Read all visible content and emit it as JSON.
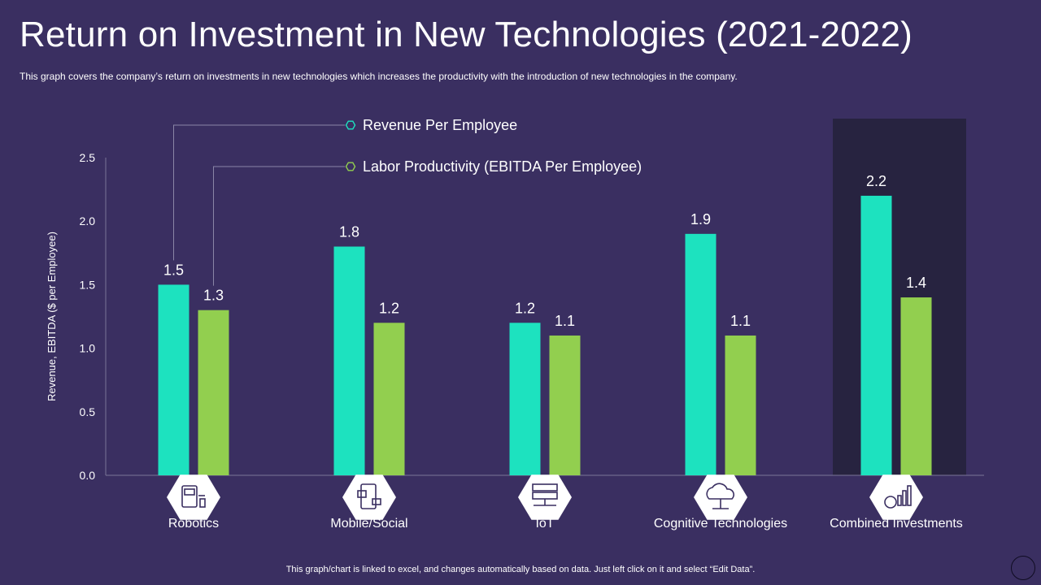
{
  "title": "Return on Investment in New Technologies (2021-2022)",
  "subtitle": "This graph covers the company’s return  on investments in new technologies which increases the productivity with the introduction of new technologies in the company.",
  "footnote": "This graph/chart is linked to excel,  and changes automatically based on data. Just left click on it and select “Edit Data”.",
  "colors": {
    "background": "#3a2f61",
    "revenue": "#1de2bf",
    "labor": "#92cf4f",
    "highlight_panel": "#272340",
    "axis": "#7b7598"
  },
  "chart_data": {
    "type": "bar",
    "title": "",
    "xlabel": "",
    "ylabel": "Revenue, EBITDA ($ per Employee)",
    "ylim": [
      0,
      2.5
    ],
    "yticks": [
      "0.0",
      "0.5",
      "1.0",
      "1.5",
      "2.0",
      "2.5"
    ],
    "categories": [
      "Robotics",
      "Mobile/Social",
      "IoT",
      "Cognitive Technologies",
      "Combined Investments"
    ],
    "category_icons": [
      "robot-machine-icon",
      "mobile-social-icon",
      "server-network-icon",
      "cloud-brain-icon",
      "growth-chart-coin-icon"
    ],
    "highlighted_category": "Combined Investments",
    "series": [
      {
        "name": "Revenue Per Employee",
        "values": [
          1.5,
          1.8,
          1.2,
          1.9,
          2.2
        ],
        "labels": [
          "1.5",
          "1.8",
          "1.2",
          "1.9",
          "2.2"
        ]
      },
      {
        "name": "Labor Productivity (EBITDA Per Employee)",
        "values": [
          1.3,
          1.2,
          1.1,
          1.1,
          1.4
        ],
        "labels": [
          "1.3",
          "1.2",
          "1.1",
          "1.1",
          "1.4"
        ]
      }
    ]
  }
}
